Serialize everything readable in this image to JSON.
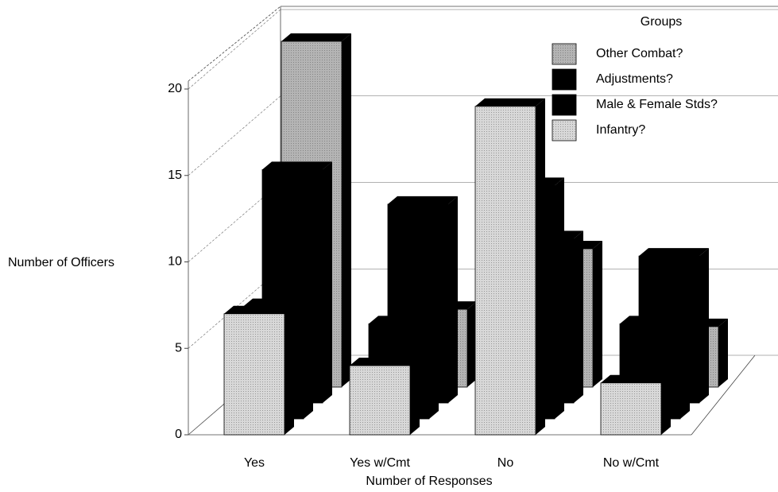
{
  "chart_data": {
    "type": "bar3d",
    "x_label": "Number of Responses",
    "y_label": "Number of Officers",
    "legend_title": "Groups",
    "legend": "top-right",
    "grid": true,
    "categories": [
      "Yes",
      "Yes w/Cmt",
      "No",
      "No w/Cmt"
    ],
    "series": [
      {
        "name": "Other Combat?",
        "color": "#b4b4b4",
        "values": [
          20,
          4.5,
          8,
          3.5
        ]
      },
      {
        "name": "Adjustments?",
        "color": "#000000",
        "values": [
          13.5,
          11.5,
          9.5,
          8.5
        ]
      },
      {
        "name": "Male & Female Stds?",
        "color": "#000000",
        "values": [
          6.5,
          5.5,
          13.5,
          5.5
        ]
      },
      {
        "name": "Infantry?",
        "color": "#d8d8d8",
        "values": [
          7,
          4,
          19,
          3
        ]
      }
    ],
    "ylim": [
      0,
      20
    ],
    "yticks": [
      0,
      5,
      10,
      15,
      20
    ]
  }
}
